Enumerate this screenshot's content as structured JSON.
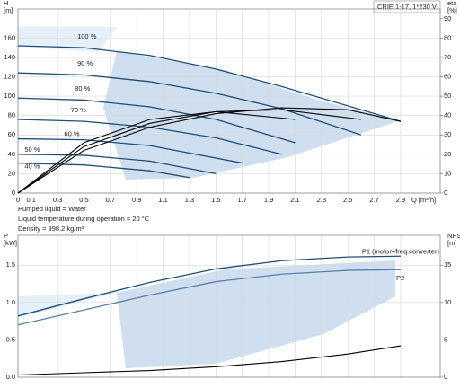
{
  "chart_data": [
    {
      "type": "line",
      "annotations": [
        "CRIE 1-17, 1*230 V"
      ],
      "y_label": "H",
      "y_unit": "[m]",
      "y2_label": "eta",
      "y2_unit": "[%]",
      "x_label": "Q [m³/h]",
      "xlim": [
        0,
        3.2
      ],
      "xticks": [
        0,
        0.1,
        0.3,
        0.5,
        0.7,
        0.9,
        1.1,
        1.3,
        1.5,
        1.7,
        1.9,
        2.1,
        2.3,
        2.5,
        2.7,
        2.9
      ],
      "ylim": [
        0,
        190
      ],
      "yticks": [
        0,
        20,
        40,
        60,
        80,
        100,
        120,
        140,
        160
      ],
      "y2lim": [
        0,
        95
      ],
      "y2ticks": [
        0,
        10,
        20,
        30,
        40,
        50,
        60,
        70,
        80,
        90
      ],
      "grid": true,
      "series": [
        {
          "name": "100 %",
          "color": "#1f4e79",
          "x": [
            0,
            0.5,
            1,
            1.5,
            2,
            2.5,
            2.9
          ],
          "values": [
            152,
            150,
            142,
            128,
            110,
            90,
            74
          ]
        },
        {
          "name": "90 %",
          "color": "#1f4e79",
          "x": [
            0,
            0.5,
            1,
            1.5,
            2,
            2.6
          ],
          "values": [
            124,
            122,
            115,
            103,
            87,
            60
          ]
        },
        {
          "name": "80 %",
          "color": "#1f4e79",
          "x": [
            0,
            0.5,
            1,
            1.5,
            2.1
          ],
          "values": [
            98,
            96,
            89,
            76,
            52
          ]
        },
        {
          "name": "70 %",
          "color": "#1f4e79",
          "x": [
            0,
            0.5,
            1,
            1.5,
            2.0
          ],
          "values": [
            76,
            74,
            68,
            57,
            40
          ]
        },
        {
          "name": "60 %",
          "color": "#1f4e79",
          "x": [
            0,
            0.5,
            1,
            1.7
          ],
          "values": [
            56,
            55,
            49,
            31
          ]
        },
        {
          "name": "50 %",
          "color": "#1f4e79",
          "x": [
            0,
            0.5,
            1,
            1.5
          ],
          "values": [
            40,
            39,
            33,
            20
          ]
        },
        {
          "name": "40 %",
          "color": "#1f4e79",
          "x": [
            0,
            0.5,
            1,
            1.3
          ],
          "values": [
            31,
            29,
            23,
            16
          ]
        },
        {
          "color": "#000000",
          "axis": "y2",
          "x": [
            0,
            0.5,
            1,
            1.5,
            2,
            2.5,
            2.9
          ],
          "values": [
            0,
            22,
            34,
            41,
            44,
            43,
            37
          ]
        },
        {
          "color": "#000000",
          "axis": "y2",
          "x": [
            0,
            0.5,
            1,
            1.5,
            2,
            2.6
          ],
          "values": [
            0,
            24,
            36,
            42,
            43,
            38
          ]
        },
        {
          "color": "#000000",
          "axis": "y2",
          "x": [
            0,
            0.5,
            1,
            1.5,
            2.1
          ],
          "values": [
            0,
            26,
            38,
            42,
            38
          ]
        }
      ],
      "notes": [
        "Pumped liquid = Water",
        "Liquid temperature during operation = 20 °C",
        "Density = 998.2 kg/m³"
      ]
    },
    {
      "type": "line",
      "y_label": "P",
      "y_unit": "[kW]",
      "y2_label": "NPSH",
      "y2_unit": "[m]",
      "xlim": [
        0,
        3.2
      ],
      "xticks": [
        0,
        0.1,
        0.3,
        0.5,
        0.7,
        0.9,
        1.1,
        1.3,
        1.5,
        1.7,
        1.9,
        2.1,
        2.3,
        2.5,
        2.7,
        2.9
      ],
      "ylim": [
        0,
        1.9
      ],
      "yticks": [
        {
          "value": 0,
          "label": "0.0"
        },
        {
          "value": 0.5,
          "label": "0.5"
        },
        {
          "value": 1,
          "label": "1.0"
        },
        {
          "value": 1.5,
          "label": "1.5"
        }
      ],
      "y2lim": [
        0,
        19
      ],
      "y2ticks": [
        0,
        5,
        10,
        15
      ],
      "grid": true,
      "series": [
        {
          "name": "P1 (motor+freq.converter)",
          "color": "#1f4e79",
          "x": [
            0,
            0.5,
            1,
            1.5,
            2,
            2.5,
            2.9
          ],
          "values": [
            0.82,
            1.05,
            1.27,
            1.45,
            1.56,
            1.61,
            1.62
          ]
        },
        {
          "name": "P2",
          "color": "#5a7fa8",
          "x": [
            0,
            0.5,
            1,
            1.5,
            2,
            2.5,
            2.9
          ],
          "values": [
            0.7,
            0.9,
            1.1,
            1.28,
            1.38,
            1.43,
            1.44
          ]
        },
        {
          "color": "#000000",
          "axis": "y2",
          "x": [
            0,
            0.5,
            1,
            1.5,
            2,
            2.5,
            2.9
          ],
          "values": [
            0.3,
            0.6,
            0.9,
            1.4,
            2.1,
            3.1,
            4.2
          ]
        }
      ]
    }
  ]
}
